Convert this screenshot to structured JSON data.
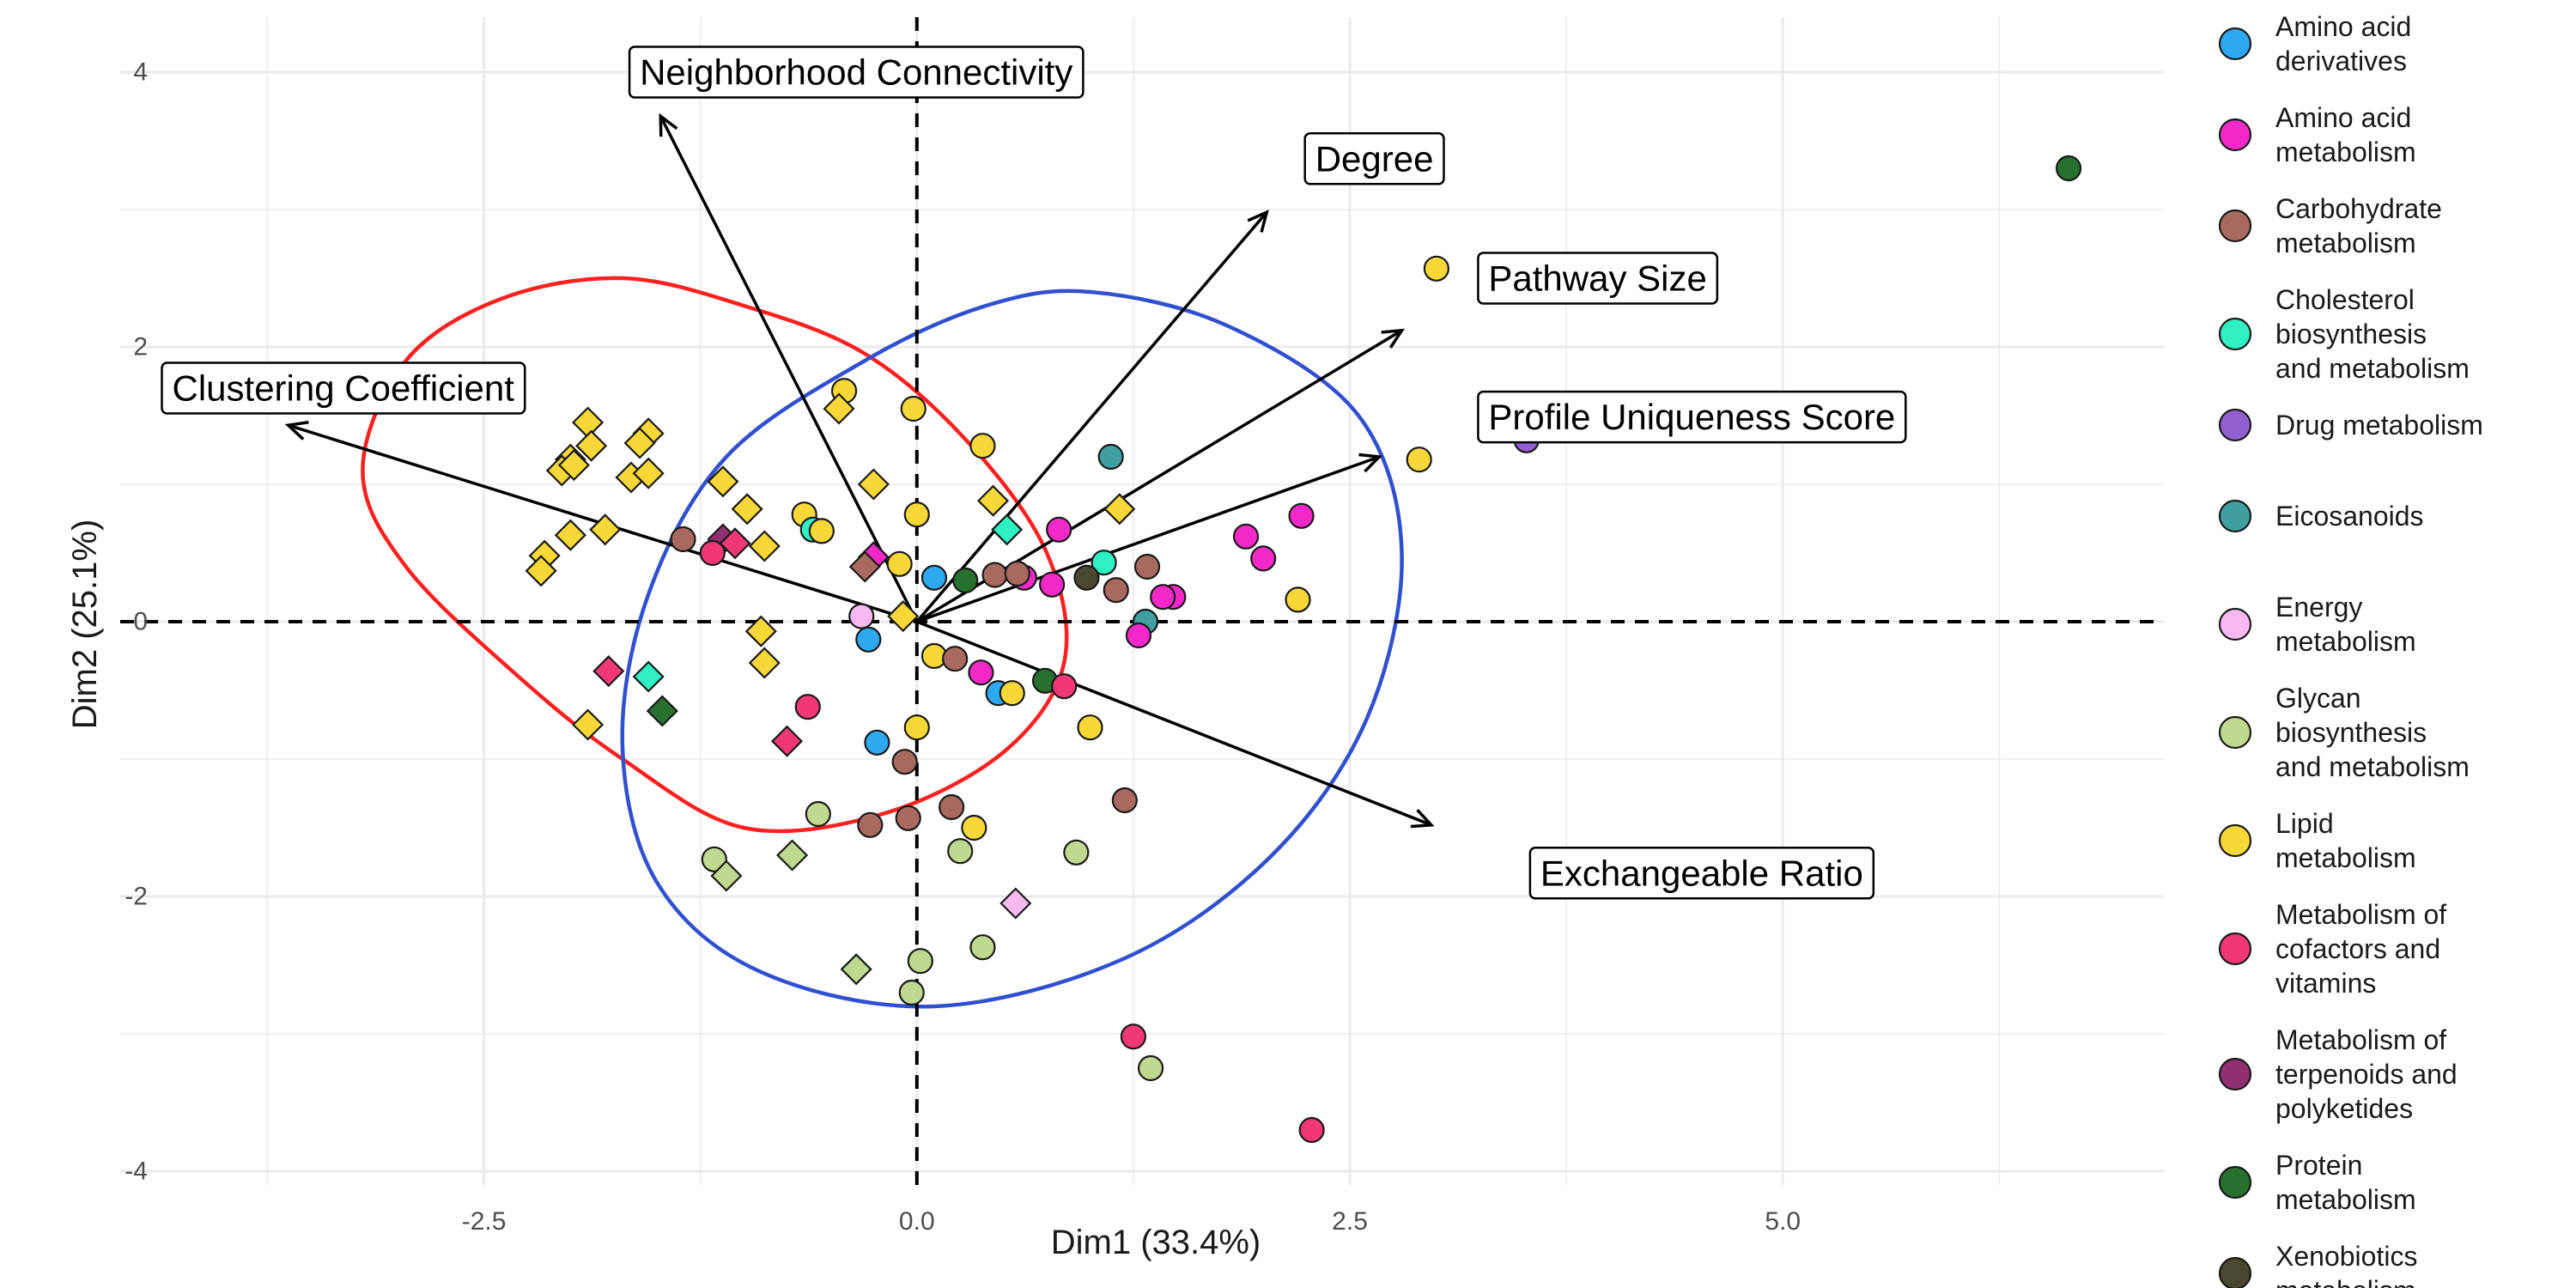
{
  "chart_data": {
    "type": "scatter",
    "xlabel": "Dim1 (33.4%)",
    "ylabel": "Dim2 (25.1%)",
    "xlim": [
      -4.6,
      7.2
    ],
    "ylim": [
      -4.1,
      4.4
    ],
    "x_ticks": [
      {
        "value": -2.5,
        "label": "-2.5"
      },
      {
        "value": 0,
        "label": "0.0"
      },
      {
        "value": 2.5,
        "label": "2.5"
      },
      {
        "value": 5,
        "label": "5.0"
      }
    ],
    "y_ticks": [
      {
        "value": -4,
        "label": "-4"
      },
      {
        "value": -2,
        "label": "-2"
      },
      {
        "value": 0,
        "label": "0"
      },
      {
        "value": 2,
        "label": "2"
      },
      {
        "value": 4,
        "label": "4"
      }
    ],
    "grid": true,
    "legend_position": "right",
    "categories": [
      {
        "name": "Amino acid derivatives",
        "lines": [
          "Amino acid",
          "derivatives"
        ],
        "color": "#2ea8f0"
      },
      {
        "name": "Amino acid metabolism",
        "lines": [
          "Amino acid",
          "metabolism"
        ],
        "color": "#f228c8"
      },
      {
        "name": "Carbohydrate metabolism",
        "lines": [
          "Carbohydrate",
          "metabolism"
        ],
        "color": "#a86a60"
      },
      {
        "name": "Cholesterol biosynthesis and metabolism",
        "lines": [
          "Cholesterol",
          "biosynthesis",
          "and metabolism"
        ],
        "color": "#2ef0c0"
      },
      {
        "name": "Drug metabolism",
        "lines": [
          "Drug metabolism"
        ],
        "color": "#9060d0"
      },
      {
        "name": "Eicosanoids",
        "lines": [
          "Eicosanoids"
        ],
        "color": "#40a0a0"
      },
      {
        "name": "Energy metabolism",
        "lines": [
          "Energy",
          "metabolism"
        ],
        "color": "#f8b8f0"
      },
      {
        "name": "Glycan biosynthesis and metabolism",
        "lines": [
          "Glycan",
          "biosynthesis",
          "and metabolism"
        ],
        "color": "#c0d890"
      },
      {
        "name": "Lipid metabolism",
        "lines": [
          "Lipid",
          "metabolism"
        ],
        "color": "#f8d838"
      },
      {
        "name": "Metabolism of cofactors and vitamins",
        "lines": [
          "Metabolism of",
          "cofactors and",
          "vitamins"
        ],
        "color": "#f03878"
      },
      {
        "name": "Metabolism of terpenoids and polyketides",
        "lines": [
          "Metabolism of",
          "terpenoids and",
          "polyketides"
        ],
        "color": "#903070"
      },
      {
        "name": "Protein metabolism",
        "lines": [
          "Protein",
          "metabolism"
        ],
        "color": "#287030"
      },
      {
        "name": "Xenobiotics metabolism",
        "lines": [
          "Xenobiotics",
          "metabolism"
        ],
        "color": "#484830"
      }
    ],
    "ellipses": [
      {
        "name": "red cluster",
        "color": "#ff2020",
        "points": [
          [
            -1.7,
            2.5
          ],
          [
            -1.0,
            2.3
          ],
          [
            -0.3,
            1.95
          ],
          [
            0.3,
            1.3
          ],
          [
            0.75,
            0.5
          ],
          [
            0.85,
            -0.3
          ],
          [
            0.5,
            -0.95
          ],
          [
            -0.2,
            -1.4
          ],
          [
            -1.0,
            -1.5
          ],
          [
            -1.7,
            -1.0
          ],
          [
            -2.3,
            -0.4
          ],
          [
            -2.95,
            0.4
          ],
          [
            -3.2,
            1.1
          ],
          [
            -2.95,
            1.9
          ],
          [
            -2.4,
            2.35
          ]
        ]
      },
      {
        "name": "blue cluster",
        "color": "#3050d0",
        "points": [
          [
            1.0,
            2.4
          ],
          [
            1.8,
            2.15
          ],
          [
            2.55,
            1.5
          ],
          [
            2.8,
            0.5
          ],
          [
            2.6,
            -0.7
          ],
          [
            2.05,
            -1.7
          ],
          [
            1.2,
            -2.45
          ],
          [
            0.1,
            -2.8
          ],
          [
            -0.9,
            -2.55
          ],
          [
            -1.5,
            -1.9
          ],
          [
            -1.7,
            -0.9
          ],
          [
            -1.55,
            0.2
          ],
          [
            -1.1,
            1.2
          ],
          [
            -0.3,
            1.9
          ],
          [
            0.4,
            2.3
          ]
        ]
      }
    ],
    "variables": [
      {
        "name": "Neighborhood Connectivity",
        "x": -1.48,
        "y": 3.68,
        "label_x": -1.6,
        "label_y": 4.0
      },
      {
        "name": "Degree",
        "x": 2.02,
        "y": 2.98,
        "label_x": 2.3,
        "label_y": 3.37
      },
      {
        "name": "Pathway Size",
        "x": 2.8,
        "y": 2.12,
        "label_x": 3.3,
        "label_y": 2.5
      },
      {
        "name": "Profile Uniqueness Score",
        "x": 2.67,
        "y": 1.2,
        "label_x": 3.3,
        "label_y": 1.49
      },
      {
        "name": "Clustering Coefficient",
        "x": -3.63,
        "y": 1.43,
        "label_x": -4.3,
        "label_y": 1.7
      },
      {
        "name": "Exchangeable Ratio",
        "x": 2.97,
        "y": -1.48,
        "label_x": 3.6,
        "label_y": -1.83
      }
    ],
    "points": [
      {
        "x": 6.65,
        "y": 3.3,
        "cat": 11,
        "shape": "circle"
      },
      {
        "x": 3.0,
        "y": 2.57,
        "cat": 8,
        "shape": "circle"
      },
      {
        "x": 3.52,
        "y": 1.32,
        "cat": 4,
        "shape": "circle"
      },
      {
        "x": 2.9,
        "y": 1.18,
        "cat": 8,
        "shape": "circle"
      },
      {
        "x": 1.12,
        "y": 1.2,
        "cat": 5,
        "shape": "circle"
      },
      {
        "x": 1.17,
        "y": 0.82,
        "cat": 8,
        "shape": "diamond"
      },
      {
        "x": 2.22,
        "y": 0.77,
        "cat": 1,
        "shape": "circle"
      },
      {
        "x": 1.9,
        "y": 0.62,
        "cat": 1,
        "shape": "circle"
      },
      {
        "x": 2.0,
        "y": 0.46,
        "cat": 1,
        "shape": "circle"
      },
      {
        "x": 2.2,
        "y": 0.16,
        "cat": 8,
        "shape": "circle"
      },
      {
        "x": 1.48,
        "y": 0.18,
        "cat": 1,
        "shape": "circle"
      },
      {
        "x": 1.42,
        "y": 0.18,
        "cat": 1,
        "shape": "circle"
      },
      {
        "x": 1.33,
        "y": 0.4,
        "cat": 2,
        "shape": "circle"
      },
      {
        "x": 1.15,
        "y": 0.23,
        "cat": 2,
        "shape": "circle"
      },
      {
        "x": 1.08,
        "y": 0.43,
        "cat": 3,
        "shape": "circle"
      },
      {
        "x": 0.98,
        "y": 0.32,
        "cat": 12,
        "shape": "circle"
      },
      {
        "x": 1.32,
        "y": 0.0,
        "cat": 5,
        "shape": "circle"
      },
      {
        "x": 1.28,
        "y": -0.1,
        "cat": 1,
        "shape": "circle"
      },
      {
        "x": 0.82,
        "y": 0.67,
        "cat": 1,
        "shape": "circle"
      },
      {
        "x": 0.78,
        "y": 0.27,
        "cat": 1,
        "shape": "circle"
      },
      {
        "x": 0.62,
        "y": 0.32,
        "cat": 1,
        "shape": "circle"
      },
      {
        "x": 0.52,
        "y": 0.67,
        "cat": 3,
        "shape": "diamond"
      },
      {
        "x": 0.44,
        "y": 0.88,
        "cat": 8,
        "shape": "diamond"
      },
      {
        "x": 0.45,
        "y": 0.34,
        "cat": 2,
        "shape": "circle"
      },
      {
        "x": 0.58,
        "y": 0.35,
        "cat": 2,
        "shape": "circle"
      },
      {
        "x": 0.38,
        "y": 1.28,
        "cat": 8,
        "shape": "circle"
      },
      {
        "x": 0.28,
        "y": 0.3,
        "cat": 11,
        "shape": "circle"
      },
      {
        "x": 0.1,
        "y": 0.32,
        "cat": 0,
        "shape": "circle"
      },
      {
        "x": -0.02,
        "y": 1.55,
        "cat": 8,
        "shape": "circle"
      },
      {
        "x": -0.42,
        "y": 1.68,
        "cat": 8,
        "shape": "circle"
      },
      {
        "x": -0.45,
        "y": 1.55,
        "cat": 8,
        "shape": "diamond"
      },
      {
        "x": -0.25,
        "y": 1.0,
        "cat": 8,
        "shape": "diamond"
      },
      {
        "x": 0.0,
        "y": 0.78,
        "cat": 8,
        "shape": "circle"
      },
      {
        "x": -0.1,
        "y": 0.42,
        "cat": 8,
        "shape": "circle"
      },
      {
        "x": -0.25,
        "y": 0.47,
        "cat": 1,
        "shape": "diamond"
      },
      {
        "x": -0.3,
        "y": 0.4,
        "cat": 2,
        "shape": "diamond"
      },
      {
        "x": -0.08,
        "y": 0.04,
        "cat": 8,
        "shape": "diamond"
      },
      {
        "x": -0.32,
        "y": 0.04,
        "cat": 6,
        "shape": "circle"
      },
      {
        "x": -0.28,
        "y": -0.13,
        "cat": 0,
        "shape": "circle"
      },
      {
        "x": 0.1,
        "y": -0.25,
        "cat": 8,
        "shape": "circle"
      },
      {
        "x": 0.22,
        "y": -0.27,
        "cat": 2,
        "shape": "circle"
      },
      {
        "x": 0.37,
        "y": -0.37,
        "cat": 1,
        "shape": "circle"
      },
      {
        "x": 0.47,
        "y": -0.52,
        "cat": 0,
        "shape": "circle"
      },
      {
        "x": 0.55,
        "y": -0.52,
        "cat": 8,
        "shape": "circle"
      },
      {
        "x": 0.74,
        "y": -0.43,
        "cat": 11,
        "shape": "circle"
      },
      {
        "x": 0.85,
        "y": -0.47,
        "cat": 9,
        "shape": "circle"
      },
      {
        "x": 1.0,
        "y": -0.77,
        "cat": 8,
        "shape": "circle"
      },
      {
        "x": 0.0,
        "y": -0.77,
        "cat": 8,
        "shape": "circle"
      },
      {
        "x": -0.23,
        "y": -0.88,
        "cat": 0,
        "shape": "circle"
      },
      {
        "x": -0.07,
        "y": -1.02,
        "cat": 2,
        "shape": "circle"
      },
      {
        "x": -0.63,
        "y": -0.62,
        "cat": 9,
        "shape": "circle"
      },
      {
        "x": -0.75,
        "y": -0.87,
        "cat": 9,
        "shape": "diamond"
      },
      {
        "x": 1.2,
        "y": -1.3,
        "cat": 2,
        "shape": "circle"
      },
      {
        "x": 0.2,
        "y": -1.35,
        "cat": 2,
        "shape": "circle"
      },
      {
        "x": 0.33,
        "y": -1.5,
        "cat": 8,
        "shape": "circle"
      },
      {
        "x": -0.05,
        "y": -1.43,
        "cat": 2,
        "shape": "circle"
      },
      {
        "x": -0.27,
        "y": -1.48,
        "cat": 2,
        "shape": "circle"
      },
      {
        "x": -0.57,
        "y": -1.4,
        "cat": 7,
        "shape": "circle"
      },
      {
        "x": 0.25,
        "y": -1.67,
        "cat": 7,
        "shape": "circle"
      },
      {
        "x": 0.92,
        "y": -1.68,
        "cat": 7,
        "shape": "circle"
      },
      {
        "x": -0.72,
        "y": -1.7,
        "cat": 7,
        "shape": "diamond"
      },
      {
        "x": -1.17,
        "y": -1.73,
        "cat": 7,
        "shape": "circle"
      },
      {
        "x": -1.1,
        "y": -1.85,
        "cat": 7,
        "shape": "diamond"
      },
      {
        "x": 0.57,
        "y": -2.05,
        "cat": 6,
        "shape": "diamond"
      },
      {
        "x": 0.02,
        "y": -2.47,
        "cat": 7,
        "shape": "circle"
      },
      {
        "x": 0.38,
        "y": -2.37,
        "cat": 7,
        "shape": "circle"
      },
      {
        "x": -0.35,
        "y": -2.53,
        "cat": 7,
        "shape": "diamond"
      },
      {
        "x": -0.03,
        "y": -2.7,
        "cat": 7,
        "shape": "circle"
      },
      {
        "x": 1.25,
        "y": -3.02,
        "cat": 9,
        "shape": "circle"
      },
      {
        "x": 1.35,
        "y": -3.25,
        "cat": 7,
        "shape": "circle"
      },
      {
        "x": 2.28,
        "y": -3.7,
        "cat": 9,
        "shape": "circle"
      },
      {
        "x": -1.9,
        "y": 1.45,
        "cat": 8,
        "shape": "diamond"
      },
      {
        "x": -1.88,
        "y": 1.28,
        "cat": 8,
        "shape": "diamond"
      },
      {
        "x": -1.55,
        "y": 1.37,
        "cat": 8,
        "shape": "diamond"
      },
      {
        "x": -1.6,
        "y": 1.3,
        "cat": 8,
        "shape": "diamond"
      },
      {
        "x": -2.0,
        "y": 1.18,
        "cat": 8,
        "shape": "diamond"
      },
      {
        "x": -2.05,
        "y": 1.1,
        "cat": 8,
        "shape": "diamond"
      },
      {
        "x": -1.98,
        "y": 1.14,
        "cat": 8,
        "shape": "diamond"
      },
      {
        "x": -1.65,
        "y": 1.05,
        "cat": 8,
        "shape": "diamond"
      },
      {
        "x": -1.55,
        "y": 1.08,
        "cat": 8,
        "shape": "diamond"
      },
      {
        "x": -1.12,
        "y": 1.02,
        "cat": 8,
        "shape": "diamond"
      },
      {
        "x": -2.0,
        "y": 0.63,
        "cat": 8,
        "shape": "diamond"
      },
      {
        "x": -1.8,
        "y": 0.67,
        "cat": 8,
        "shape": "diamond"
      },
      {
        "x": -2.15,
        "y": 0.48,
        "cat": 8,
        "shape": "diamond"
      },
      {
        "x": -2.17,
        "y": 0.37,
        "cat": 8,
        "shape": "diamond"
      },
      {
        "x": -1.35,
        "y": 0.6,
        "cat": 2,
        "shape": "circle"
      },
      {
        "x": -1.12,
        "y": 0.6,
        "cat": 10,
        "shape": "diamond"
      },
      {
        "x": -1.05,
        "y": 0.57,
        "cat": 9,
        "shape": "diamond"
      },
      {
        "x": -1.18,
        "y": 0.5,
        "cat": 9,
        "shape": "circle"
      },
      {
        "x": -0.98,
        "y": 0.82,
        "cat": 8,
        "shape": "diamond"
      },
      {
        "x": -0.88,
        "y": 0.55,
        "cat": 8,
        "shape": "diamond"
      },
      {
        "x": -0.65,
        "y": 0.78,
        "cat": 8,
        "shape": "circle"
      },
      {
        "x": -0.6,
        "y": 0.67,
        "cat": 3,
        "shape": "circle"
      },
      {
        "x": -0.55,
        "y": 0.66,
        "cat": 8,
        "shape": "circle"
      },
      {
        "x": -0.9,
        "y": -0.07,
        "cat": 8,
        "shape": "diamond"
      },
      {
        "x": -0.88,
        "y": -0.3,
        "cat": 8,
        "shape": "diamond"
      },
      {
        "x": -1.78,
        "y": -0.36,
        "cat": 9,
        "shape": "diamond"
      },
      {
        "x": -1.55,
        "y": -0.4,
        "cat": 3,
        "shape": "diamond"
      },
      {
        "x": -1.9,
        "y": -0.75,
        "cat": 8,
        "shape": "diamond"
      },
      {
        "x": -1.47,
        "y": -0.65,
        "cat": 11,
        "shape": "diamond"
      }
    ]
  }
}
